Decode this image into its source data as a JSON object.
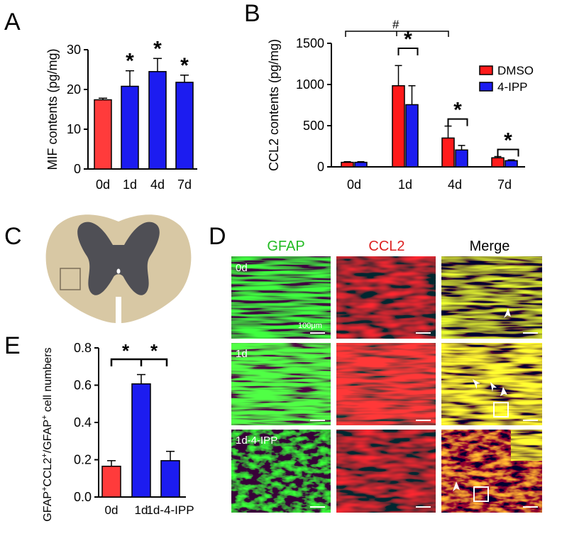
{
  "panels": {
    "A": "A",
    "B": "B",
    "C": "C",
    "D": "D",
    "E": "E"
  },
  "colors": {
    "red": "#ff3b3b",
    "blue": "#1c1cf0",
    "dmso": "#ff1a1a",
    "gfap_text": "#22bb22",
    "ccl2_text": "#dd2222",
    "cord_white_matter": "#d8c8a4",
    "cord_gray_matter": "#4f4f55"
  },
  "chart_data": [
    {
      "id": "A",
      "type": "bar",
      "categories": [
        "0d",
        "1d",
        "4d",
        "7d"
      ],
      "values": [
        17.4,
        20.8,
        24.5,
        21.8
      ],
      "errors": [
        0.4,
        3.9,
        3.3,
        1.8
      ],
      "bar_colors": [
        "red",
        "blue",
        "blue",
        "blue"
      ],
      "significance": [
        "",
        "*",
        "*",
        "*"
      ],
      "ylabel": "MIF contents (pg/mg)",
      "ylim": [
        0,
        30
      ],
      "yticks": [
        "0",
        "10",
        "20",
        "30"
      ],
      "ytick_values": [
        0,
        10,
        20,
        30
      ],
      "grid": false
    },
    {
      "id": "B",
      "type": "bar",
      "categories": [
        "0d",
        "1d",
        "4d",
        "7d"
      ],
      "series": [
        {
          "name": "DMSO",
          "values": [
            55,
            985,
            350,
            110
          ],
          "errors": [
            8,
            245,
            145,
            15
          ]
        },
        {
          "name": "4-IPP",
          "values": [
            55,
            755,
            205,
            75
          ],
          "errors": [
            8,
            230,
            55,
            10
          ]
        }
      ],
      "ylabel": "CCL2 contents (pg/mg)",
      "ylim": [
        0,
        1500
      ],
      "yticks": [
        "0",
        "500",
        "1000",
        "1500"
      ],
      "ytick_values": [
        0,
        500,
        1000,
        1500
      ],
      "pair_significance": [
        "",
        "*",
        "*",
        "*"
      ],
      "hash_label": "#",
      "legend_position": "right",
      "grid": false
    },
    {
      "id": "E",
      "type": "bar",
      "categories": [
        "0d",
        "1d",
        "1d-4-IPP"
      ],
      "values": [
        0.165,
        0.607,
        0.195
      ],
      "errors": [
        0.03,
        0.05,
        0.05
      ],
      "bar_colors": [
        "red",
        "blue",
        "blue"
      ],
      "significance_labels": [
        "*",
        "*"
      ],
      "ylabel_main": "GFAP",
      "ylabel_sup1": "+",
      "ylabel_mid": "CCL2",
      "ylabel_sup2": "+",
      "ylabel_mid2": "/GFAP",
      "ylabel_sup3": "+",
      "ylabel_tail": " cell numbers",
      "ylim": [
        0,
        0.8
      ],
      "yticks": [
        "0.0",
        "0.2",
        "0.4",
        "0.6",
        "0.8"
      ],
      "ytick_values": [
        0,
        0.2,
        0.4,
        0.6,
        0.8
      ],
      "grid": false
    }
  ],
  "micrographs": {
    "column_headers": [
      "GFAP",
      "CCL2",
      "Merge"
    ],
    "row_labels": [
      "0d",
      "1d",
      "1d-4-IPP"
    ],
    "scale_bar_label": "100μm"
  }
}
